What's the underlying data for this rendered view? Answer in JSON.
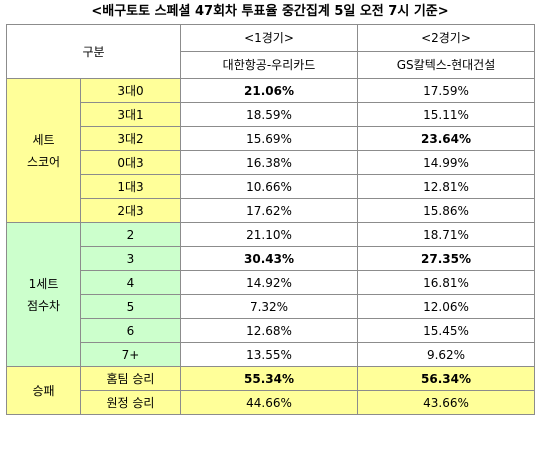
{
  "title": "<배구토토 스페셜 47회차 투표율 중간집계 5일 오전 7시 기준>",
  "header": {
    "category": "구분",
    "game1": "<1경기>",
    "game2": "<2경기>",
    "game1_teams": "대한항공-우리카드",
    "game2_teams": "GS칼텍스-현대건설"
  },
  "groups": [
    {
      "label_line1": "세트",
      "label_line2": "스코어",
      "rows": [
        {
          "label": "3대0",
          "v1": "21.06%",
          "v2": "17.59%"
        },
        {
          "label": "3대1",
          "v1": "18.59%",
          "v2": "15.11%"
        },
        {
          "label": "3대2",
          "v1": "15.69%",
          "v2": "23.64%"
        },
        {
          "label": "0대3",
          "v1": "16.38%",
          "v2": "14.99%"
        },
        {
          "label": "1대3",
          "v1": "10.66%",
          "v2": "12.81%"
        },
        {
          "label": "2대3",
          "v1": "17.62%",
          "v2": "15.86%"
        }
      ]
    },
    {
      "label_line1": "1세트",
      "label_line2": "점수차",
      "rows": [
        {
          "label": "2",
          "v1": "21.10%",
          "v2": "18.71%"
        },
        {
          "label": "3",
          "v1": "30.43%",
          "v2": "27.35%"
        },
        {
          "label": "4",
          "v1": "14.92%",
          "v2": "16.81%"
        },
        {
          "label": "5",
          "v1": "7.32%",
          "v2": "12.06%"
        },
        {
          "label": "6",
          "v1": "12.68%",
          "v2": "15.45%"
        },
        {
          "label": "7+",
          "v1": "13.55%",
          "v2": "9.62%"
        }
      ]
    },
    {
      "label_line1": "승패",
      "rows": [
        {
          "label": "홈팀 승리",
          "v1": "55.34%",
          "v2": "56.34%"
        },
        {
          "label": "원정 승리",
          "v1": "44.66%",
          "v2": "43.66%"
        }
      ]
    }
  ],
  "colors": {
    "set_score_bg": "#ffff99",
    "point_diff_bg": "#ccffcc",
    "win_loss_bg": "#ffff99"
  }
}
